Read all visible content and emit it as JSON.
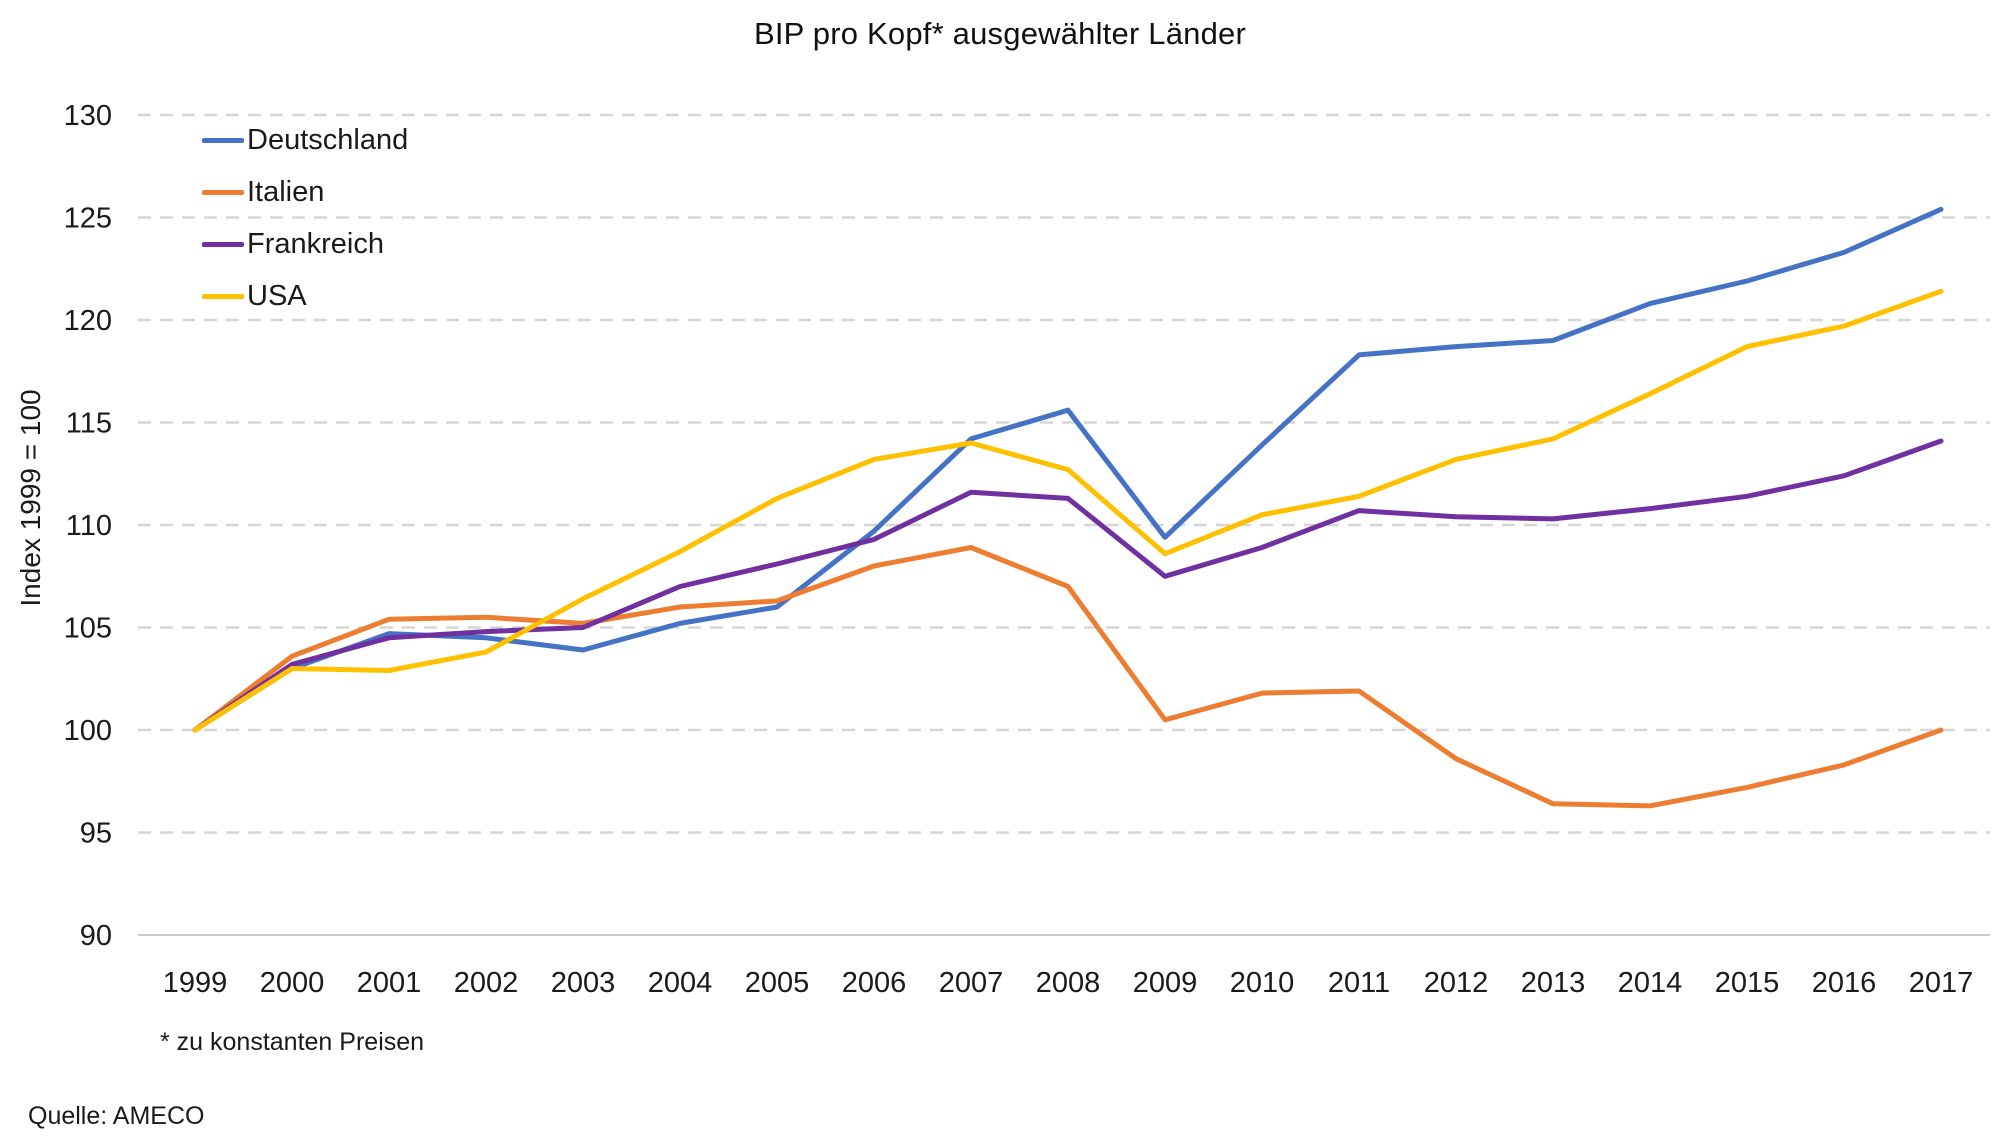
{
  "title": "BIP pro Kopf* ausgewählter Länder",
  "footnote": "* zu konstanten Preisen",
  "source": "Quelle: AMECO",
  "colors": {
    "grid": "#d6d6d6",
    "baseline": "#c8c8c8",
    "text": "#1a1a1a"
  },
  "chart_data": {
    "type": "line",
    "title": "BIP pro Kopf* ausgewählter Länder",
    "xlabel": "",
    "ylabel": "Index 1999 = 100",
    "ylim": [
      90,
      130
    ],
    "yticks": [
      90,
      95,
      100,
      105,
      110,
      115,
      120,
      125,
      130
    ],
    "grid": "horizontal-dashed",
    "legend_position": "top-left-inside",
    "x": [
      1999,
      2000,
      2001,
      2002,
      2003,
      2004,
      2005,
      2006,
      2007,
      2008,
      2009,
      2010,
      2011,
      2012,
      2013,
      2014,
      2015,
      2016,
      2017
    ],
    "series": [
      {
        "name": "Deutschland",
        "color": "#4472C4",
        "values": [
          100,
          103.0,
          104.7,
          104.5,
          103.9,
          105.2,
          106.0,
          109.7,
          114.2,
          115.6,
          109.4,
          113.9,
          118.3,
          118.7,
          119.0,
          120.8,
          121.9,
          123.3,
          125.4
        ]
      },
      {
        "name": "Italien",
        "color": "#ED7D31",
        "values": [
          100,
          103.6,
          105.4,
          105.5,
          105.2,
          106.0,
          106.3,
          108.0,
          108.9,
          107.0,
          100.5,
          101.8,
          101.9,
          98.6,
          96.4,
          96.3,
          97.2,
          98.3,
          100.0
        ]
      },
      {
        "name": "Frankreich",
        "color": "#7030A0",
        "values": [
          100,
          103.2,
          104.5,
          104.8,
          105.0,
          107.0,
          108.1,
          109.3,
          111.6,
          111.3,
          107.5,
          108.9,
          110.7,
          110.4,
          110.3,
          110.8,
          111.4,
          112.4,
          114.1
        ]
      },
      {
        "name": "USA",
        "color": "#FFC000",
        "values": [
          100,
          103.0,
          102.9,
          103.8,
          106.4,
          108.7,
          111.3,
          113.2,
          114.0,
          112.7,
          108.6,
          110.5,
          111.4,
          113.2,
          114.2,
          116.4,
          118.7,
          119.7,
          121.4
        ]
      }
    ]
  }
}
